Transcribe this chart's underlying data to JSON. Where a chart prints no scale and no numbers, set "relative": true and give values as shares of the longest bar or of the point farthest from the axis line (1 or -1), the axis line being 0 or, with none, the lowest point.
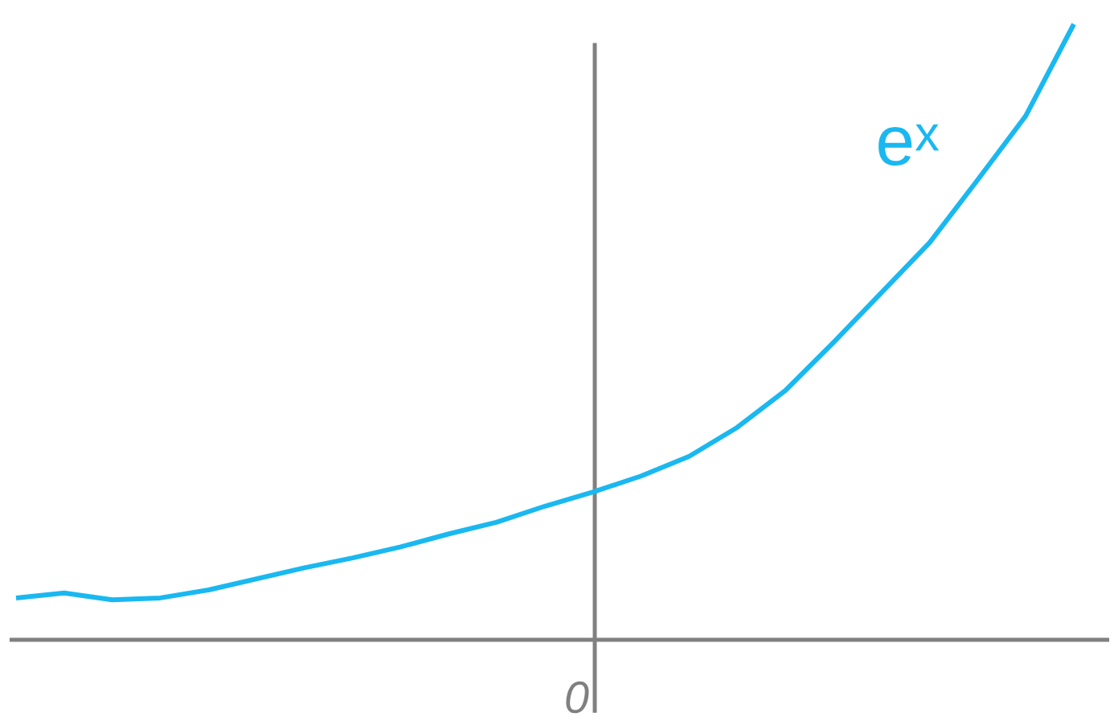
{
  "chart_data": {
    "type": "line",
    "relative": true,
    "marker": "none",
    "line_style": "solid",
    "categories": [
      null,
      null,
      null,
      null,
      null,
      null,
      null,
      null,
      null,
      null,
      null,
      null,
      null,
      null,
      null,
      null,
      null,
      null,
      null,
      null,
      null,
      null,
      null
    ],
    "series": [
      {
        "color": "#1ab8f0",
        "values": [
          0.068,
          0.076,
          0.065,
          0.068,
          0.081,
          0.099,
          0.117,
          0.133,
          0.151,
          0.172,
          0.191,
          0.217,
          0.24,
          0.266,
          0.298,
          0.345,
          0.405,
          0.483,
          0.564,
          0.645,
          0.747,
          0.851,
          1
        ]
      }
    ],
    "annotations": [
      "e$^{x}$",
      "0"
    ]
  }
}
